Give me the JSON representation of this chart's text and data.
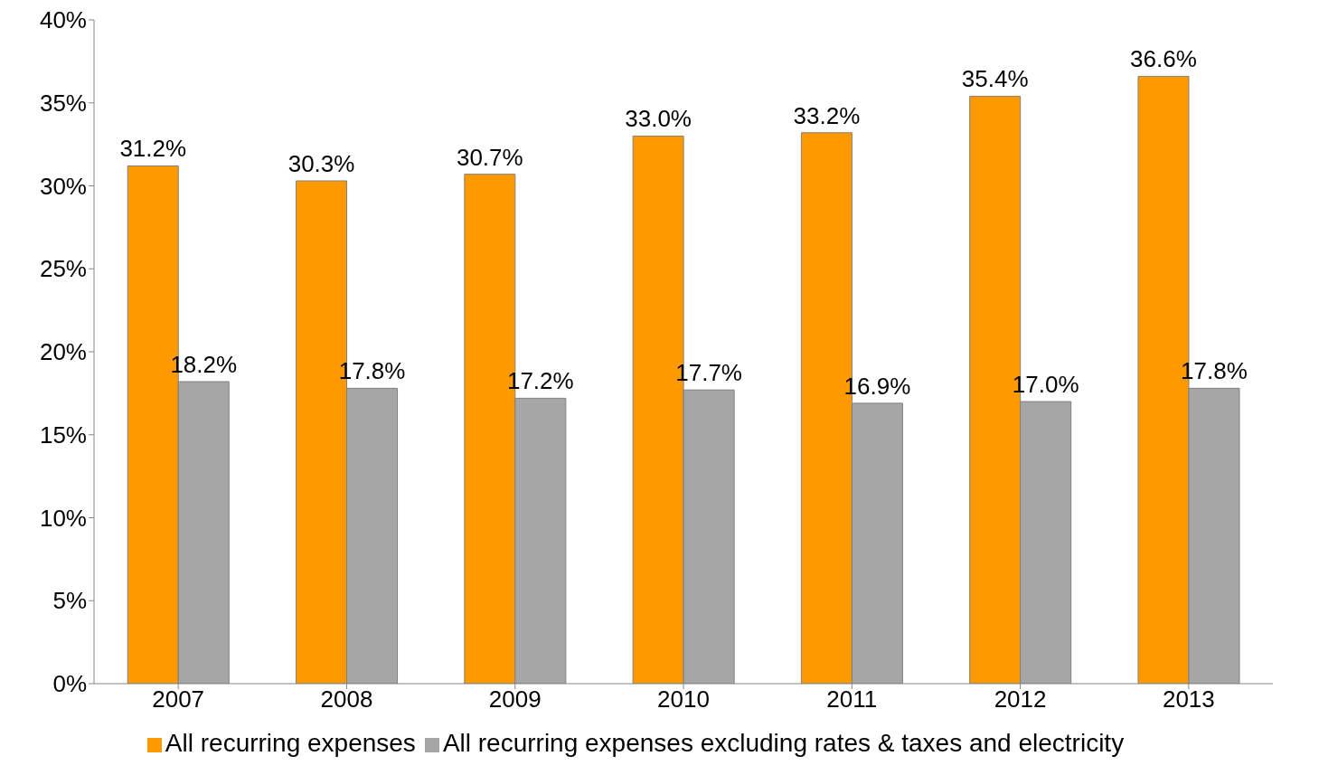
{
  "chart_data": {
    "type": "bar",
    "categories": [
      "2007",
      "2008",
      "2009",
      "2010",
      "2011",
      "2012",
      "2013"
    ],
    "series": [
      {
        "name": "All recurring expenses",
        "color": "#ff9900",
        "values": [
          31.2,
          30.3,
          30.7,
          33.0,
          33.2,
          35.4,
          36.6
        ],
        "value_labels": [
          "31.2%",
          "30.3%",
          "30.7%",
          "33.0%",
          "33.2%",
          "35.4%",
          "36.6%"
        ]
      },
      {
        "name": "All recurring expenses excluding rates & taxes and electricity",
        "color": "#a6a6a6",
        "values": [
          18.2,
          17.8,
          17.2,
          17.7,
          16.9,
          17.0,
          17.8
        ],
        "value_labels": [
          "18.2%",
          "17.8%",
          "17.2%",
          "17.7%",
          "16.9%",
          "17.0%",
          "17.8%"
        ]
      }
    ],
    "ylim": [
      0,
      40
    ],
    "yticks": [
      {
        "value": 0,
        "label": "0%"
      },
      {
        "value": 5,
        "label": "5%"
      },
      {
        "value": 10,
        "label": "10%"
      },
      {
        "value": 15,
        "label": "15%"
      },
      {
        "value": 20,
        "label": "20%"
      },
      {
        "value": 25,
        "label": "25%"
      },
      {
        "value": 30,
        "label": "30%"
      },
      {
        "value": 35,
        "label": "35%"
      },
      {
        "value": 40,
        "label": "40%"
      }
    ],
    "grid": false,
    "legend": "bottom"
  }
}
